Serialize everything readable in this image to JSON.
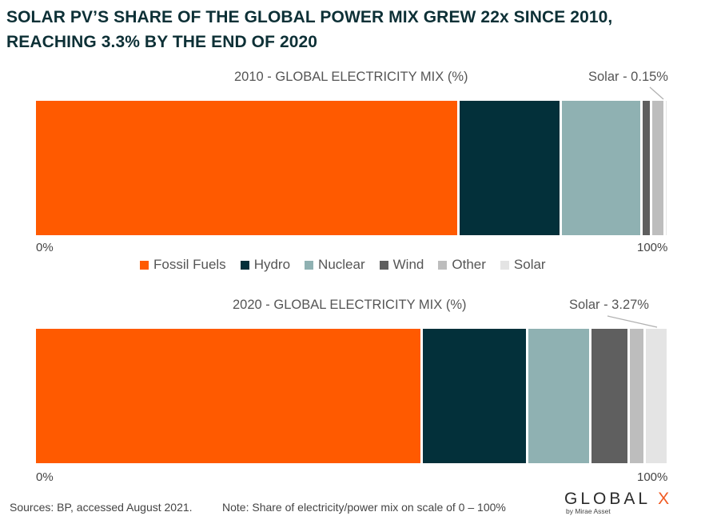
{
  "headline": "SOLAR PV’S SHARE OF THE GLOBAL POWER MIX GREW 22x SINCE 2010, REACHING 3.3% BY THE END OF 2020",
  "colors": {
    "Fossil Fuels": "#ff5a00",
    "Hydro": "#03303a",
    "Nuclear": "#8fb1b2",
    "Wind": "#5f5f5f",
    "Other": "#bdbdbd",
    "Solar": "#e4e4e4"
  },
  "legend": [
    "Fossil Fuels",
    "Hydro",
    "Nuclear",
    "Wind",
    "Other",
    "Solar"
  ],
  "chart_data": [
    {
      "type": "bar",
      "orientation": "horizontal-stacked",
      "title": "2010 - GLOBAL ELECTRICITY MIX (%)",
      "axis_min_label": "0%",
      "axis_max_label": "100%",
      "xlim": [
        0,
        100
      ],
      "annotation": "Solar - 0.15%",
      "series": [
        {
          "name": "Fossil Fuels",
          "value": 67.1
        },
        {
          "name": "Hydro",
          "value": 16.2
        },
        {
          "name": "Nuclear",
          "value": 12.8
        },
        {
          "name": "Wind",
          "value": 1.6
        },
        {
          "name": "Other",
          "value": 2.1
        },
        {
          "name": "Solar",
          "value": 0.15
        }
      ]
    },
    {
      "type": "bar",
      "orientation": "horizontal-stacked",
      "title": "2020 - GLOBAL ELECTRICITY MIX (%)",
      "axis_min_label": "0%",
      "axis_max_label": "100%",
      "xlim": [
        0,
        100
      ],
      "annotation": "Solar - 3.27%",
      "series": [
        {
          "name": "Fossil Fuels",
          "value": 61.3
        },
        {
          "name": "Hydro",
          "value": 16.7
        },
        {
          "name": "Nuclear",
          "value": 10.1
        },
        {
          "name": "Wind",
          "value": 6.0
        },
        {
          "name": "Other",
          "value": 2.6
        },
        {
          "name": "Solar",
          "value": 3.27
        }
      ]
    }
  ],
  "footer": {
    "sources": "Sources: BP, accessed August 2021.",
    "note": "Note: Share of electricity/power mix on scale of 0 – 100%"
  },
  "logo": {
    "main": "GLOBAL ",
    "x": "X",
    "sub": "by Mirae Asset"
  }
}
